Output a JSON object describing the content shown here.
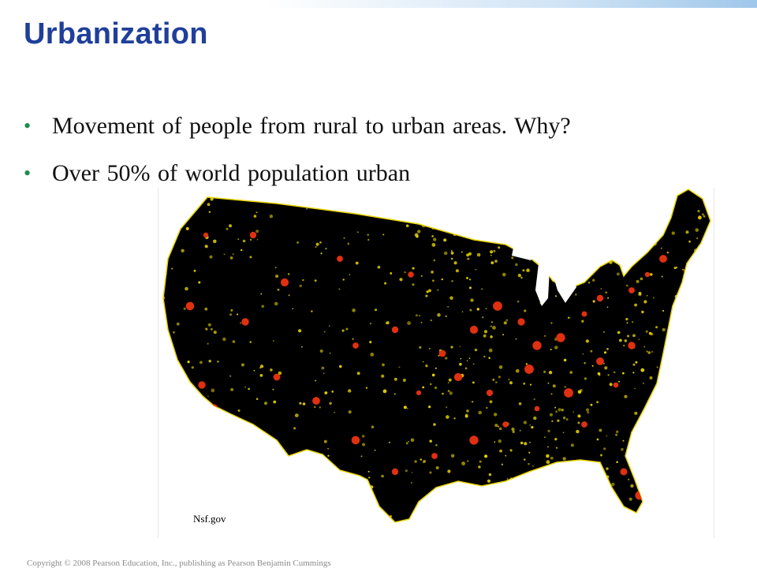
{
  "slide": {
    "title": "Urbanization",
    "bullets": [
      "Movement of people from rural to urban areas. Why?",
      "Over 50% of world population urban"
    ],
    "bullet_symbol": "•",
    "bullet_color": "#1a8e4a",
    "title_color": "#1f3f9a"
  },
  "map": {
    "credit": "Nsf.gov",
    "colors": {
      "land": "#000000",
      "lights": "#e8d400",
      "cities": "#e03010"
    }
  },
  "footer": {
    "copyright": "Copyright © 2008 Pearson Education, Inc., publishing as Pearson Benjamin Cummings"
  }
}
